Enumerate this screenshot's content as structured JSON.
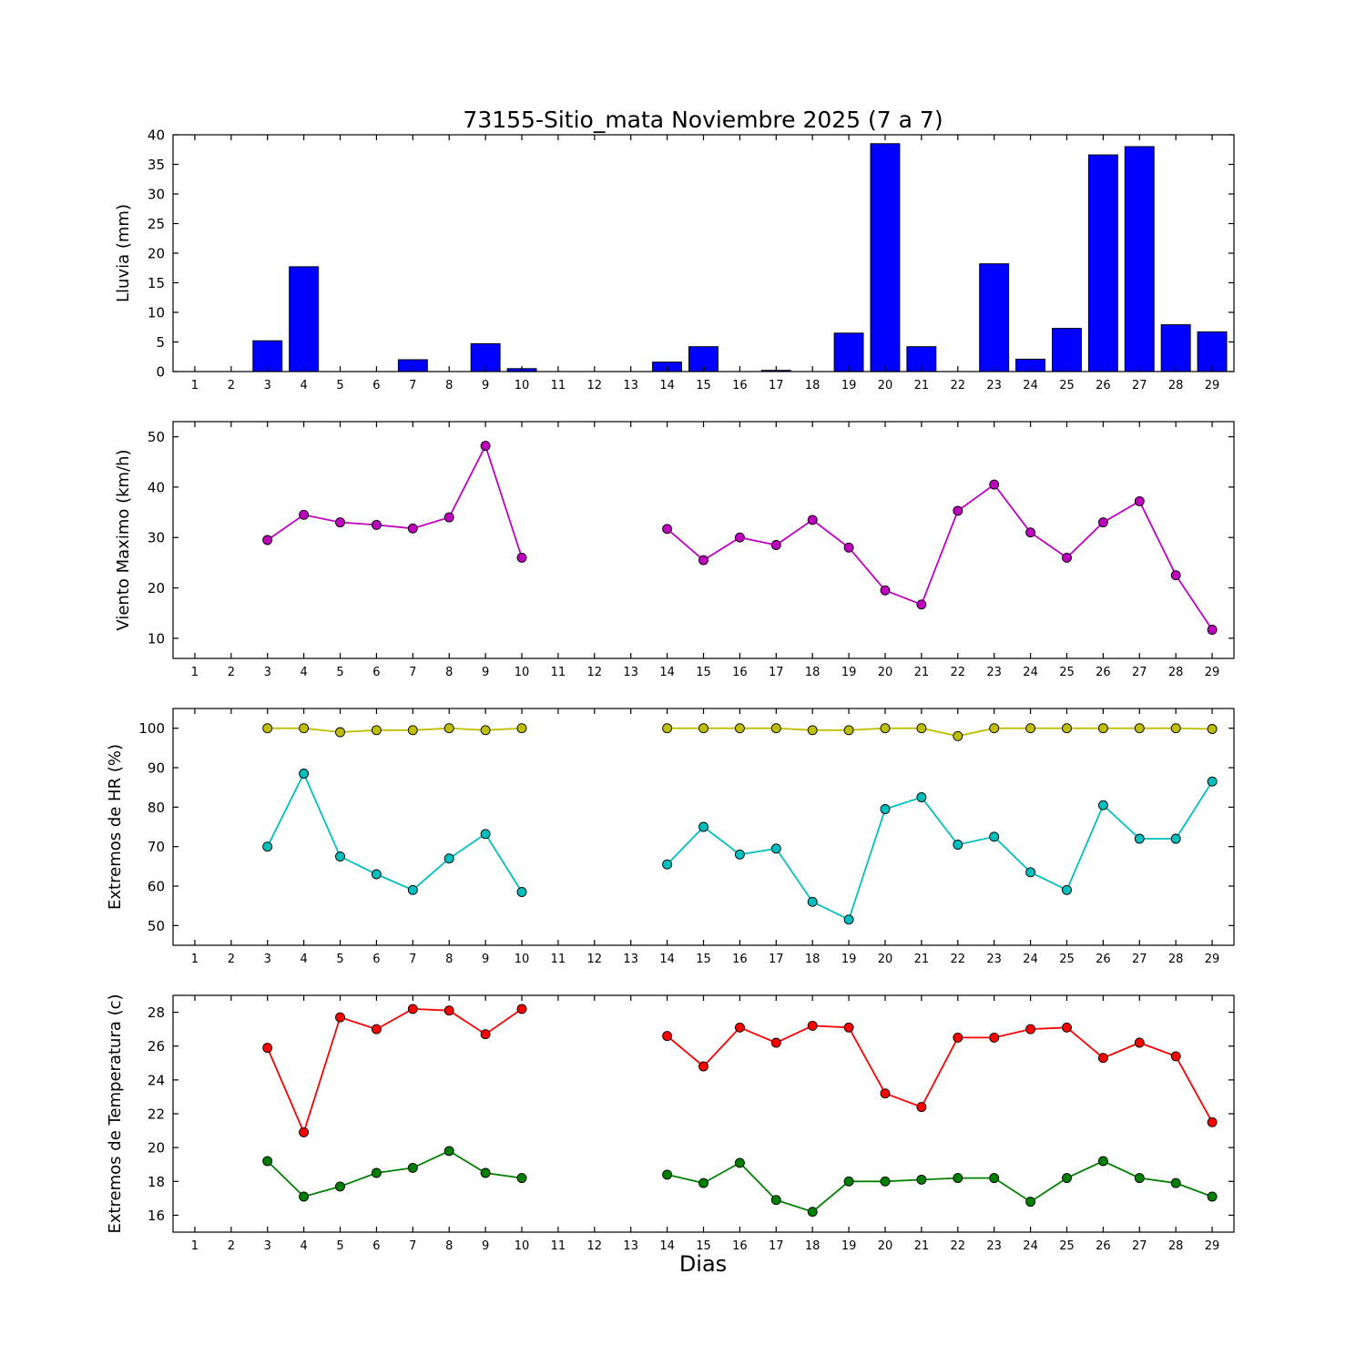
{
  "title": "73155-Sitio_mata Noviembre 2025  (7 a 7)",
  "xlabel": "Dias",
  "x_ticks": [
    1,
    2,
    3,
    4,
    5,
    6,
    7,
    8,
    9,
    10,
    11,
    12,
    13,
    14,
    15,
    16,
    17,
    18,
    19,
    20,
    21,
    22,
    23,
    24,
    25,
    26,
    27,
    28,
    29
  ],
  "xlim": [
    0.4,
    29.6
  ],
  "chart_data": [
    {
      "type": "bar",
      "ylabel": "Lluvia (mm)",
      "ylim": [
        0,
        40
      ],
      "yticks": [
        0,
        5,
        10,
        15,
        20,
        25,
        30,
        35,
        40
      ],
      "x": [
        1,
        2,
        3,
        4,
        5,
        6,
        7,
        8,
        9,
        10,
        11,
        12,
        13,
        14,
        15,
        16,
        17,
        18,
        19,
        20,
        21,
        22,
        23,
        24,
        25,
        26,
        27,
        28,
        29
      ],
      "series": [
        {
          "name": "lluvia",
          "color": "#0000ff",
          "values": [
            0,
            0,
            5.2,
            17.7,
            0,
            0,
            2.0,
            0,
            4.7,
            0.5,
            0,
            0,
            0,
            1.6,
            4.2,
            0,
            0.2,
            0,
            6.5,
            38.5,
            4.2,
            0,
            18.2,
            2.1,
            7.3,
            36.6,
            38.0,
            7.9,
            6.7
          ]
        }
      ]
    },
    {
      "type": "line",
      "ylabel": "Viento Maximo (km/h)",
      "ylim": [
        6,
        53
      ],
      "yticks": [
        10,
        20,
        30,
        40,
        50
      ],
      "x": [
        3,
        4,
        5,
        6,
        7,
        8,
        9,
        10,
        14,
        15,
        16,
        17,
        18,
        19,
        20,
        21,
        22,
        23,
        24,
        25,
        26,
        27,
        28,
        29
      ],
      "series": [
        {
          "name": "viento-maximo",
          "color": "#bf00bf",
          "values": [
            29.5,
            34.5,
            33.0,
            32.5,
            31.8,
            34.0,
            48.2,
            26.0,
            31.7,
            25.5,
            30.0,
            28.5,
            33.5,
            28.0,
            19.5,
            16.7,
            35.3,
            40.5,
            31.0,
            26.0,
            33.0,
            37.2,
            22.5,
            11.7
          ]
        }
      ]
    },
    {
      "type": "line",
      "ylabel": "Extremos de HR (%)",
      "ylim": [
        45,
        105
      ],
      "yticks": [
        50,
        60,
        70,
        80,
        90,
        100
      ],
      "x": [
        3,
        4,
        5,
        6,
        7,
        8,
        9,
        10,
        14,
        15,
        16,
        17,
        18,
        19,
        20,
        21,
        22,
        23,
        24,
        25,
        26,
        27,
        28,
        29
      ],
      "series": [
        {
          "name": "hr-maxima",
          "color": "#bfbf00",
          "values": [
            100,
            100,
            99,
            99.5,
            99.5,
            100,
            99.5,
            100,
            100,
            100,
            100,
            100,
            99.5,
            99.5,
            100,
            100,
            98,
            100,
            100,
            100,
            100,
            100,
            100,
            99.8
          ]
        },
        {
          "name": "hr-minima",
          "color": "#00bfbf",
          "values": [
            70,
            88.5,
            67.5,
            63,
            59,
            67,
            73.2,
            58.5,
            65.5,
            75,
            68,
            69.5,
            56,
            51.5,
            79.5,
            82.5,
            70.5,
            72.5,
            63.5,
            59,
            80.5,
            72,
            72,
            86.5
          ]
        }
      ]
    },
    {
      "type": "line",
      "ylabel": "Extremos de Temperatura (c)",
      "ylim": [
        15,
        29
      ],
      "yticks": [
        16,
        18,
        20,
        22,
        24,
        26,
        28
      ],
      "x": [
        3,
        4,
        5,
        6,
        7,
        8,
        9,
        10,
        14,
        15,
        16,
        17,
        18,
        19,
        20,
        21,
        22,
        23,
        24,
        25,
        26,
        27,
        28,
        29
      ],
      "series": [
        {
          "name": "temperatura-maxima",
          "color": "#ff0000",
          "values": [
            25.9,
            20.9,
            27.7,
            27.0,
            28.2,
            28.1,
            26.7,
            28.2,
            26.6,
            24.8,
            27.1,
            26.2,
            27.2,
            27.1,
            23.2,
            22.4,
            26.5,
            26.5,
            27.0,
            27.1,
            25.3,
            26.2,
            25.4,
            21.5
          ]
        },
        {
          "name": "temperatura-minima",
          "color": "#008000",
          "values": [
            19.2,
            17.1,
            17.7,
            18.5,
            18.8,
            19.8,
            18.5,
            18.2,
            18.4,
            17.9,
            19.1,
            16.9,
            16.2,
            18.0,
            18.0,
            18.1,
            18.2,
            18.2,
            16.8,
            18.2,
            19.2,
            18.2,
            17.9,
            17.1
          ]
        }
      ]
    }
  ]
}
